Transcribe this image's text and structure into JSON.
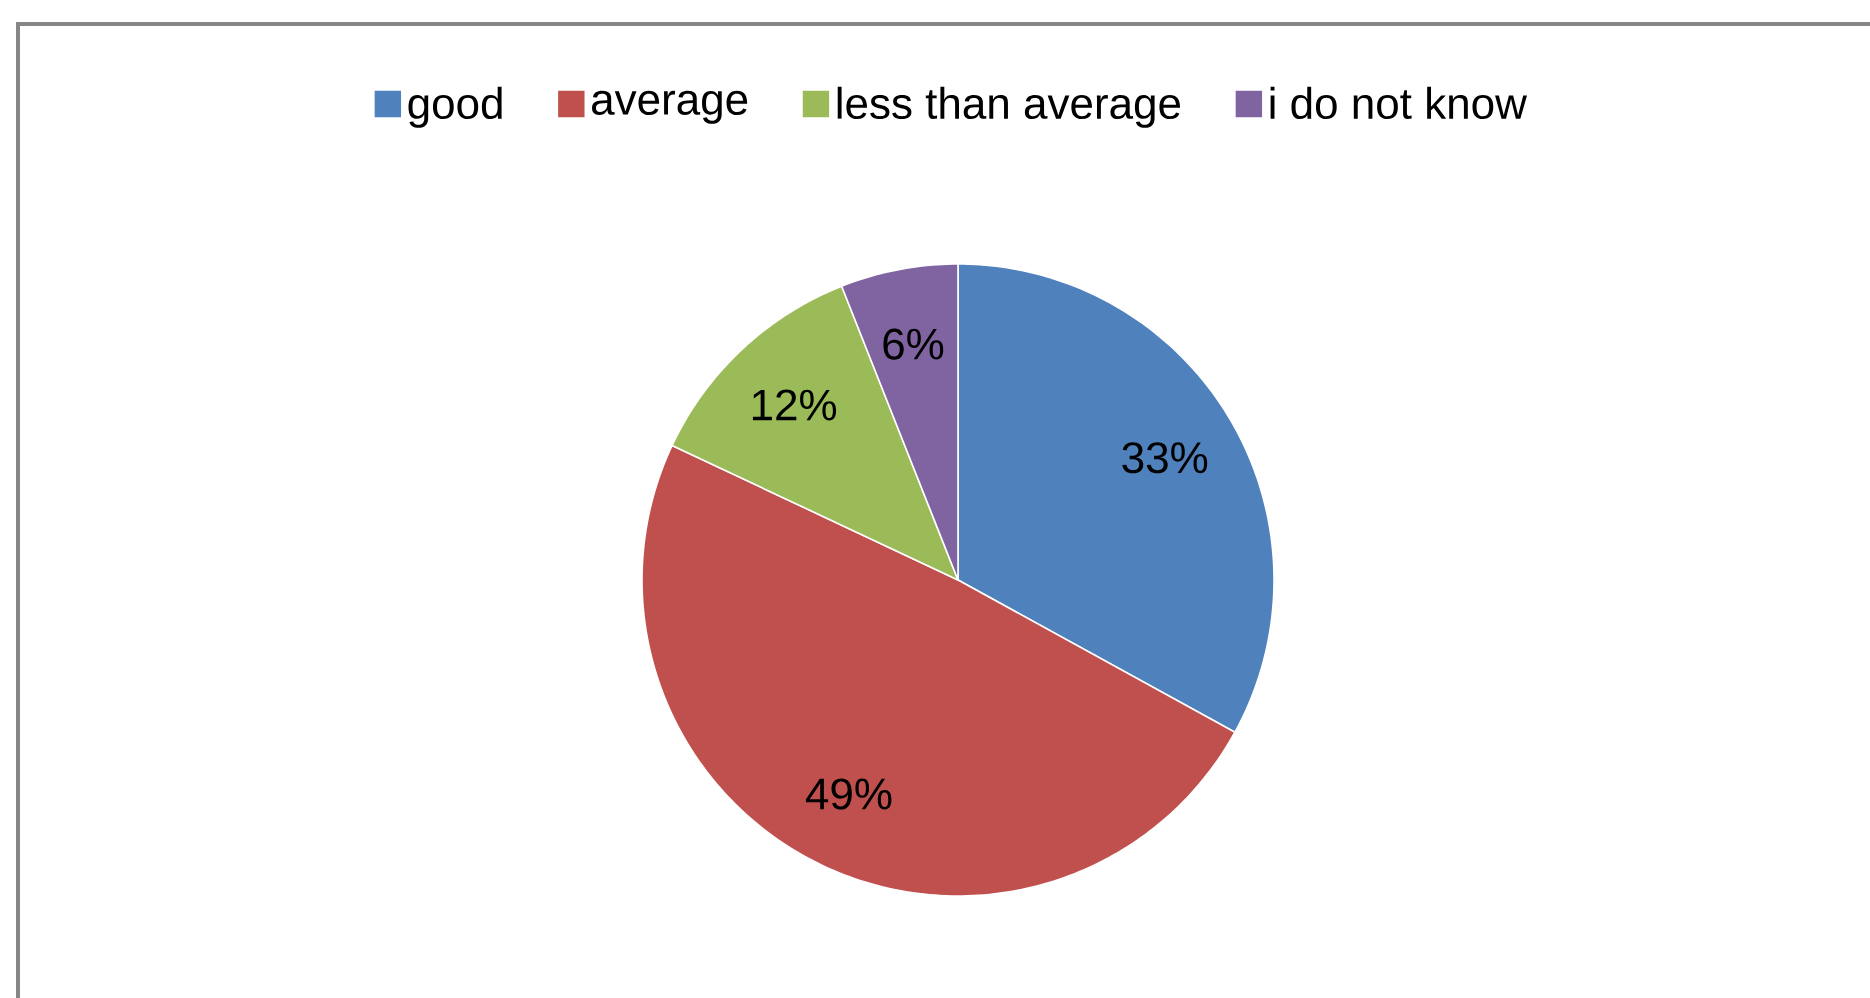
{
  "chart_data": {
    "type": "pie",
    "categories": [
      "good",
      "average",
      "less than average",
      "i do not know"
    ],
    "values": [
      33,
      49,
      12,
      6
    ],
    "colors": [
      "#4f81bd",
      "#c0504d",
      "#9bbb59",
      "#8064a2"
    ],
    "value_labels": [
      "33%",
      "49%",
      "12%",
      "6%"
    ],
    "legend": "top"
  }
}
